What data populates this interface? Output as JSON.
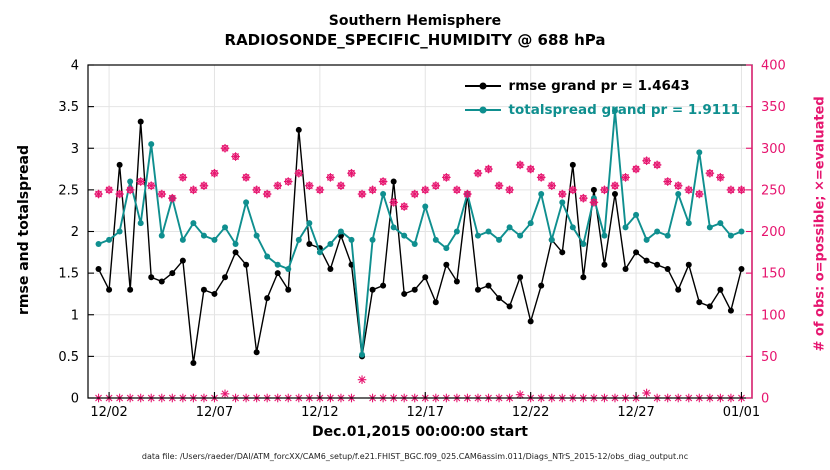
{
  "chart_data": {
    "type": "line",
    "title": "Southern Hemisphere",
    "subtitle": "RADIOSONDE_SPECIFIC_HUMIDITY @ 688 hPa",
    "xlabel": "Dec.01,2015 00:00:00 start",
    "ylabel_left": "rmse and totalspread",
    "ylabel_right": "# of obs: o=possible; ×=evaluated",
    "grid": true,
    "legend_position": "top-right-inside",
    "xlim": [
      1,
      32.5
    ],
    "x_start_day": 1.5,
    "x_step_days": 0.5,
    "xaxis": {
      "tick_values": [
        2,
        7,
        12,
        17,
        22,
        27,
        32
      ],
      "tick_labels": [
        "12/02",
        "12/07",
        "12/12",
        "12/17",
        "12/22",
        "12/27",
        "01/01"
      ]
    },
    "yaxis_left": {
      "lim": [
        0,
        4
      ],
      "tick_values": [
        0,
        0.5,
        1,
        1.5,
        2,
        2.5,
        3,
        3.5,
        4
      ],
      "tick_labels": [
        "0",
        "0.5",
        "1",
        "1.5",
        "2",
        "2.5",
        "3",
        "3.5",
        "4"
      ],
      "color": "#000000"
    },
    "yaxis_right": {
      "lim": [
        0,
        400
      ],
      "tick_values": [
        0,
        50,
        100,
        150,
        200,
        250,
        300,
        350,
        400
      ],
      "tick_labels": [
        "0",
        "50",
        "100",
        "150",
        "200",
        "250",
        "300",
        "350",
        "400"
      ],
      "color": "#e6156f"
    },
    "series": [
      {
        "name": "rmse",
        "legend": "rmse grand pr = 1.4643",
        "grand_pr": 1.4643,
        "color": "#000000",
        "marker": "filled-circle",
        "axis": "left",
        "values": [
          1.55,
          1.3,
          2.8,
          1.3,
          3.32,
          1.45,
          1.4,
          1.5,
          1.65,
          0.42,
          1.3,
          1.25,
          1.45,
          1.75,
          1.6,
          0.55,
          1.2,
          1.5,
          1.3,
          3.22,
          1.85,
          1.8,
          1.55,
          1.95,
          1.6,
          0.5,
          1.3,
          1.35,
          2.6,
          1.25,
          1.3,
          1.45,
          1.15,
          1.6,
          1.4,
          2.45,
          1.3,
          1.35,
          1.2,
          1.1,
          1.45,
          0.92,
          1.35,
          1.9,
          1.75,
          2.8,
          1.45,
          2.5,
          1.6,
          2.45,
          1.55,
          1.75,
          1.65,
          1.6,
          1.55,
          1.3,
          1.6,
          1.15,
          1.1,
          1.3,
          1.05,
          1.55
        ]
      },
      {
        "name": "totalspread",
        "legend": "totalspread grand pr = 1.9111",
        "grand_pr": 1.9111,
        "color": "#0f8f8f",
        "marker": "filled-circle",
        "axis": "left",
        "values": [
          1.85,
          1.9,
          2.0,
          2.6,
          2.1,
          3.05,
          1.95,
          2.4,
          1.9,
          2.1,
          1.95,
          1.9,
          2.05,
          1.85,
          2.35,
          1.95,
          1.7,
          1.6,
          1.55,
          1.9,
          2.1,
          1.75,
          1.85,
          2.0,
          1.9,
          0.52,
          1.9,
          2.45,
          2.05,
          1.95,
          1.85,
          2.3,
          1.9,
          1.8,
          2.0,
          2.45,
          1.95,
          2.0,
          1.9,
          2.05,
          1.95,
          2.1,
          2.45,
          1.9,
          2.35,
          2.05,
          1.85,
          2.4,
          1.95,
          3.45,
          2.05,
          2.2,
          1.9,
          2.0,
          1.95,
          2.45,
          2.1,
          2.95,
          2.05,
          2.1,
          1.95,
          2.0
        ]
      },
      {
        "name": "obs_possible",
        "legend": null,
        "color": "#e6156f",
        "marker": "circle-asterisk",
        "axis": "right",
        "values": [
          245,
          250,
          245,
          250,
          260,
          255,
          245,
          240,
          265,
          250,
          255,
          270,
          300,
          290,
          265,
          250,
          245,
          255,
          260,
          270,
          255,
          250,
          265,
          255,
          270,
          245,
          250,
          260,
          235,
          230,
          245,
          250,
          255,
          265,
          250,
          245,
          270,
          275,
          255,
          250,
          280,
          275,
          265,
          255,
          245,
          250,
          240,
          235,
          250,
          255,
          265,
          275,
          285,
          280,
          260,
          255,
          250,
          245,
          270,
          265,
          250,
          250
        ]
      },
      {
        "name": "obs_evaluated",
        "legend": null,
        "color": "#e6156f",
        "marker": "asterisk",
        "axis": "right",
        "values": [
          0,
          0,
          0,
          0,
          0,
          0,
          0,
          0,
          0,
          0,
          0,
          0,
          5,
          0,
          0,
          0,
          0,
          0,
          0,
          0,
          0,
          0,
          0,
          0,
          0,
          22,
          0,
          0,
          0,
          0,
          0,
          0,
          0,
          0,
          0,
          0,
          0,
          0,
          0,
          0,
          4,
          0,
          0,
          0,
          0,
          0,
          0,
          0,
          0,
          0,
          0,
          0,
          6,
          0,
          0,
          0,
          0,
          0,
          0,
          0,
          0,
          0
        ]
      }
    ]
  },
  "footer": {
    "text": "data file: /Users/raeder/DAI/ATM_forcXX/CAM6_setup/f.e21.FHIST_BGC.f09_025.CAM6assim.011/Diags_NTrS_2015-12/obs_diag_output.nc"
  }
}
